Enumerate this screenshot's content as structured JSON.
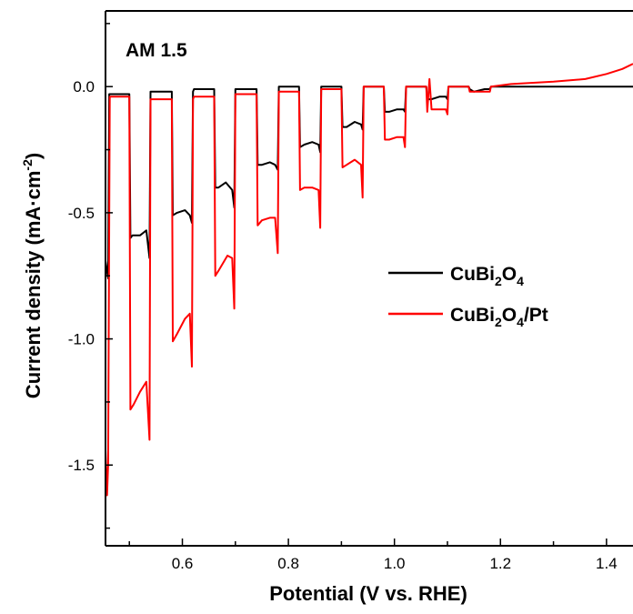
{
  "chart_data": {
    "type": "line",
    "annotation": "AM 1.5",
    "xlabel": "Potential (V vs. RHE)",
    "ylabel": "Current density (mA·cm⁻²)",
    "xlim": [
      0.455,
      1.45
    ],
    "ylim": [
      -1.82,
      0.3
    ],
    "x_ticks": [
      0.6,
      0.8,
      1.0,
      1.2,
      1.4
    ],
    "x_tick_labels": [
      "0.6",
      "0.8",
      "1.0",
      "1.2",
      "1.4"
    ],
    "y_ticks": [
      0.0,
      -0.5,
      -1.0,
      -1.5
    ],
    "y_tick_labels": [
      "0.0",
      "-0.5",
      "-1.0",
      "-1.5"
    ],
    "legend_position": "right-middle",
    "series": [
      {
        "name": "CuBi2O4",
        "color": "#000000",
        "x": [
          0.455,
          0.46,
          0.462,
          0.5,
          0.502,
          0.506,
          0.52,
          0.532,
          0.538,
          0.54,
          0.542,
          0.58,
          0.582,
          0.59,
          0.605,
          0.614,
          0.618,
          0.62,
          0.622,
          0.66,
          0.662,
          0.668,
          0.682,
          0.694,
          0.698,
          0.7,
          0.702,
          0.74,
          0.742,
          0.75,
          0.765,
          0.775,
          0.78,
          0.782,
          0.82,
          0.822,
          0.83,
          0.845,
          0.857,
          0.86,
          0.862,
          0.9,
          0.902,
          0.91,
          0.925,
          0.937,
          0.94,
          0.942,
          0.98,
          0.982,
          0.99,
          1.005,
          1.017,
          1.02,
          1.022,
          1.06,
          1.062,
          1.07,
          1.085,
          1.097,
          1.1,
          1.102,
          1.14,
          1.142,
          1.15,
          1.17,
          1.18,
          1.182,
          1.22,
          1.3,
          1.38,
          1.45
        ],
        "y": [
          -0.69,
          -0.76,
          -0.03,
          -0.03,
          -0.6,
          -0.59,
          -0.59,
          -0.57,
          -0.68,
          -0.02,
          -0.02,
          -0.02,
          -0.51,
          -0.5,
          -0.49,
          -0.51,
          -0.54,
          -0.02,
          -0.01,
          -0.01,
          -0.4,
          -0.4,
          -0.38,
          -0.41,
          -0.48,
          -0.01,
          -0.01,
          -0.01,
          -0.31,
          -0.31,
          -0.3,
          -0.31,
          -0.33,
          0.0,
          0.0,
          -0.24,
          -0.23,
          -0.22,
          -0.23,
          -0.26,
          0.0,
          0.0,
          -0.16,
          -0.16,
          -0.14,
          -0.15,
          -0.17,
          0.0,
          0.0,
          -0.1,
          -0.1,
          -0.09,
          -0.09,
          -0.1,
          0.0,
          0.0,
          -0.05,
          -0.05,
          -0.04,
          -0.04,
          -0.05,
          0.0,
          0.0,
          -0.01,
          -0.02,
          -0.01,
          -0.01,
          0.0,
          0.0,
          0.0,
          0.0,
          0.0
        ]
      },
      {
        "name": "CuBi2O4/Pt",
        "color": "#ff0000",
        "x": [
          0.455,
          0.458,
          0.46,
          0.463,
          0.5,
          0.502,
          0.508,
          0.52,
          0.532,
          0.538,
          0.54,
          0.542,
          0.58,
          0.582,
          0.59,
          0.605,
          0.614,
          0.618,
          0.62,
          0.622,
          0.66,
          0.662,
          0.668,
          0.685,
          0.694,
          0.698,
          0.7,
          0.702,
          0.74,
          0.742,
          0.75,
          0.765,
          0.775,
          0.78,
          0.782,
          0.82,
          0.822,
          0.83,
          0.845,
          0.857,
          0.86,
          0.862,
          0.9,
          0.902,
          0.91,
          0.925,
          0.937,
          0.94,
          0.942,
          0.98,
          0.982,
          0.99,
          1.005,
          1.017,
          1.02,
          1.022,
          1.06,
          1.062,
          1.066,
          1.07,
          1.085,
          1.097,
          1.1,
          1.102,
          1.14,
          1.142,
          1.15,
          1.17,
          1.18,
          1.182,
          1.22,
          1.3,
          1.36,
          1.4,
          1.43,
          1.45
        ],
        "y": [
          -1.44,
          -1.62,
          -1.5,
          -0.04,
          -0.04,
          -1.28,
          -1.26,
          -1.21,
          -1.17,
          -1.4,
          -0.05,
          -0.05,
          -0.05,
          -1.01,
          -0.98,
          -0.92,
          -0.9,
          -1.11,
          -0.05,
          -0.04,
          -0.04,
          -0.75,
          -0.73,
          -0.67,
          -0.68,
          -0.88,
          -0.03,
          -0.03,
          -0.03,
          -0.55,
          -0.53,
          -0.52,
          -0.52,
          -0.66,
          -0.02,
          -0.02,
          -0.41,
          -0.4,
          -0.4,
          -0.41,
          -0.56,
          -0.01,
          -0.01,
          -0.32,
          -0.31,
          -0.29,
          -0.31,
          -0.44,
          0.0,
          0.0,
          -0.21,
          -0.21,
          -0.2,
          -0.2,
          -0.24,
          0.0,
          0.0,
          -0.1,
          0.03,
          -0.09,
          -0.09,
          -0.09,
          -0.11,
          0.0,
          0.0,
          -0.02,
          -0.02,
          -0.02,
          -0.02,
          0.0,
          0.01,
          0.02,
          0.03,
          0.05,
          0.07,
          0.09
        ]
      }
    ]
  }
}
